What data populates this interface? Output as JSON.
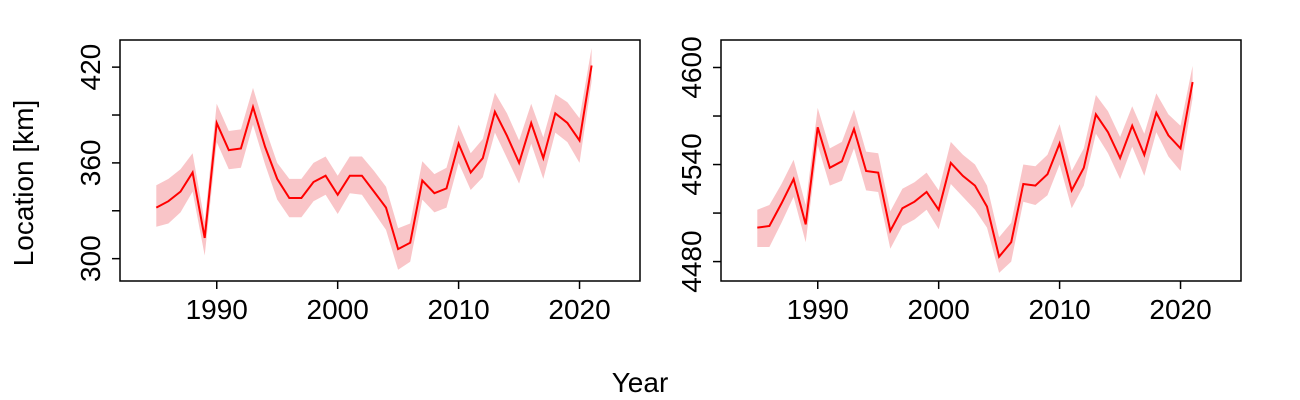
{
  "figure": {
    "xlabel": "Year",
    "ylabel": "Location [km]"
  },
  "chart_data": [
    {
      "type": "line",
      "title": "",
      "xlabel": "",
      "ylabel": "Location [km]",
      "xlim": [
        1982,
        2025
      ],
      "ylim": [
        286,
        437
      ],
      "xticks": [
        1990,
        2000,
        2010,
        2020
      ],
      "yticks": [
        300,
        330,
        360,
        390,
        420
      ],
      "ytick_labels": [
        "300",
        "",
        "360",
        "",
        "420"
      ],
      "grid": false,
      "color": "#ff0000",
      "band_color": "#f9c5c8",
      "series": [
        {
          "x": [
            1985,
            1986,
            1987,
            1988,
            1989,
            1990,
            1991,
            1992,
            1993,
            1994,
            1995,
            1996,
            1997,
            1998,
            1999,
            2000,
            2001,
            2002,
            2003,
            2004,
            2005,
            2006,
            2007,
            2008,
            2009,
            2010,
            2011,
            2012,
            2013,
            2014,
            2015,
            2016,
            2017,
            2018,
            2019,
            2020,
            2021
          ],
          "y": [
            332,
            336,
            342,
            354,
            313,
            385,
            368,
            369,
            395,
            370,
            350,
            338,
            338,
            348,
            352,
            340,
            352,
            352,
            342,
            332,
            306,
            310,
            349,
            341,
            344,
            372,
            354,
            363,
            392,
            377,
            360,
            385,
            363,
            391,
            385,
            374,
            421
          ],
          "lower": [
            320,
            322,
            329,
            342,
            302,
            373,
            356,
            357,
            384,
            359,
            337,
            326,
            326,
            336,
            340,
            328,
            341,
            340,
            329,
            318,
            293,
            298,
            337,
            329,
            332,
            360,
            343,
            351,
            379,
            363,
            347,
            372,
            350,
            379,
            373,
            360,
            411
          ],
          "upper": [
            346,
            350,
            356,
            366,
            323,
            397,
            380,
            381,
            407,
            382,
            360,
            350,
            350,
            360,
            364,
            352,
            364,
            364,
            355,
            345,
            319,
            322,
            361,
            353,
            357,
            384,
            366,
            375,
            404,
            391,
            374,
            397,
            376,
            403,
            398,
            388,
            432
          ]
        }
      ]
    },
    {
      "type": "line",
      "title": "",
      "xlabel": "",
      "ylabel": "",
      "xlim": [
        1982,
        2025
      ],
      "ylim": [
        4468,
        4617
      ],
      "xticks": [
        1990,
        2000,
        2010,
        2020
      ],
      "yticks": [
        4480,
        4510,
        4540,
        4570,
        4600
      ],
      "ytick_labels": [
        "4480",
        "",
        "4540",
        "",
        "4600"
      ],
      "grid": false,
      "color": "#ff0000",
      "band_color": "#f9c5c8",
      "series": [
        {
          "x": [
            1985,
            1986,
            1987,
            1988,
            1989,
            1990,
            1991,
            1992,
            1993,
            1994,
            1995,
            1996,
            1997,
            1998,
            1999,
            2000,
            2001,
            2002,
            2003,
            2004,
            2005,
            2006,
            2007,
            2008,
            2009,
            2010,
            2011,
            2012,
            2013,
            2014,
            2015,
            2016,
            2017,
            2018,
            2019,
            2020,
            2021
          ],
          "y": [
            4501,
            4502,
            4516,
            4531,
            4503,
            4563,
            4538,
            4542,
            4562,
            4536,
            4535,
            4499,
            4513,
            4517,
            4523,
            4512,
            4541,
            4533,
            4527,
            4514,
            4483,
            4492,
            4528,
            4527,
            4534,
            4553,
            4524,
            4538,
            4571,
            4560,
            4544,
            4564,
            4546,
            4572,
            4558,
            4550,
            4591
          ],
          "lower": [
            4489,
            4489,
            4504,
            4520,
            4492,
            4552,
            4527,
            4530,
            4550,
            4524,
            4523,
            4488,
            4502,
            4506,
            4512,
            4500,
            4528,
            4520,
            4512,
            4501,
            4473,
            4480,
            4517,
            4515,
            4521,
            4540,
            4513,
            4527,
            4559,
            4547,
            4531,
            4551,
            4533,
            4560,
            4545,
            4536,
            4581
          ],
          "upper": [
            4512,
            4515,
            4528,
            4543,
            4515,
            4575,
            4550,
            4554,
            4574,
            4548,
            4547,
            4511,
            4525,
            4529,
            4535,
            4524,
            4554,
            4546,
            4540,
            4527,
            4495,
            4504,
            4540,
            4539,
            4546,
            4565,
            4536,
            4550,
            4583,
            4573,
            4557,
            4576,
            4559,
            4584,
            4571,
            4564,
            4601
          ]
        }
      ]
    }
  ]
}
